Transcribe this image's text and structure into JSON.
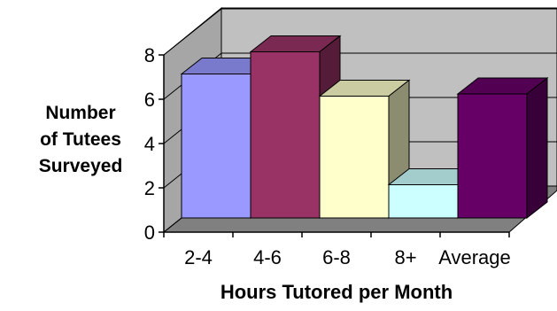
{
  "chart_data": {
    "type": "bar",
    "three_d": true,
    "categories": [
      "2-4",
      "4-6",
      "6-8",
      "8+",
      "Average"
    ],
    "values": [
      6.5,
      7.5,
      5.5,
      1.5,
      5.6
    ],
    "colors": [
      "#9999ff",
      "#993366",
      "#ffffcc",
      "#ccffff",
      "#660066"
    ],
    "title": "",
    "xlabel": "Hours Tutored per Month",
    "ylabel_lines": [
      "Number",
      "of Tutees",
      "Surveyed"
    ],
    "ylim": [
      0,
      8
    ],
    "yticks": [
      0,
      2,
      4,
      6,
      8
    ],
    "grid": true,
    "legend": "none"
  }
}
